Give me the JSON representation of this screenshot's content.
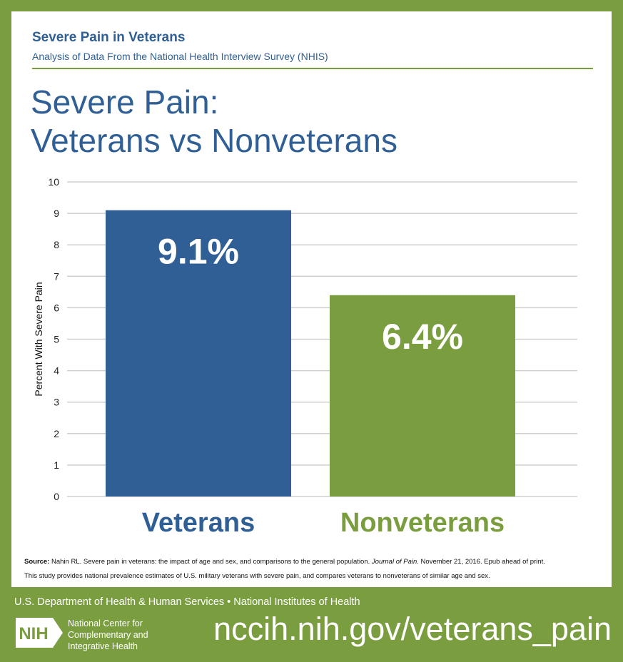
{
  "header": {
    "title": "Severe Pain in Veterans",
    "subtitle": "Analysis of Data From the National Health Interview Survey (NHIS)"
  },
  "main_title": {
    "line1": "Severe Pain:",
    "line2": "Veterans vs Nonveterans"
  },
  "colors": {
    "blue": "#2f5f95",
    "green": "#7a9e3f",
    "grid": "#cfcfcf"
  },
  "chart_data": {
    "type": "bar",
    "categories": [
      "Veterans",
      "Nonveterans"
    ],
    "values": [
      9.1,
      6.4
    ],
    "data_labels": [
      "9.1%",
      "6.4%"
    ],
    "bar_colors": [
      "#2f5f95",
      "#7a9e3f"
    ],
    "ylabel": "Percent With Severe Pain",
    "ylim": [
      0,
      10
    ],
    "yticks": [
      0,
      1,
      2,
      3,
      4,
      5,
      6,
      7,
      8,
      9,
      10
    ],
    "grid": true
  },
  "source": {
    "label": "Source:",
    "text_before": " Nahin RL. Severe pain in veterans: the impact of age and sex, and comparisons to the general population. ",
    "journal": "Journal of Pain.",
    "text_after": " November 21, 2016. Epub ahead of print.",
    "note": "This study provides national prevalence estimates of U.S. military veterans with severe pain, and compares veterans to nonveterans of similar age and sex."
  },
  "footer": {
    "org": "U.S. Department of Health & Human Services • National Institutes of Health",
    "logo_text": "NIH",
    "logo_icon": "nih-logo-icon",
    "center_name_lines": [
      "National Center for",
      "Complementary and",
      "Integrative Health"
    ],
    "url": "nccih.nih.gov/veterans_pain"
  }
}
